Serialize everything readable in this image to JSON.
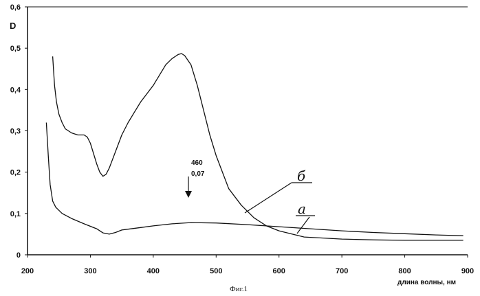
{
  "chart_data": {
    "type": "line",
    "ylabel": "D",
    "xlabel": "длина волны, нм",
    "xlim": [
      200,
      900
    ],
    "ylim": [
      0,
      0.6
    ],
    "x_ticks": [
      "200",
      "300",
      "400",
      "500",
      "600",
      "700",
      "800",
      "900"
    ],
    "y_ticks": [
      "0",
      "0,1",
      "0,2",
      "0,3",
      "0,4",
      "0,5",
      "0,6"
    ],
    "grid": false,
    "series": [
      {
        "name": "а",
        "x": [
          230,
          233,
          236,
          240,
          245,
          255,
          270,
          290,
          310,
          320,
          330,
          340,
          350,
          360,
          380,
          400,
          430,
          460,
          500,
          550,
          600,
          650,
          700,
          750,
          800,
          850,
          893
        ],
        "y": [
          0.32,
          0.24,
          0.17,
          0.13,
          0.115,
          0.1,
          0.088,
          0.075,
          0.063,
          0.053,
          0.05,
          0.054,
          0.06,
          0.062,
          0.066,
          0.07,
          0.075,
          0.078,
          0.077,
          0.073,
          0.068,
          0.063,
          0.058,
          0.054,
          0.051,
          0.048,
          0.046
        ]
      },
      {
        "name": "б",
        "x": [
          240,
          243,
          246,
          250,
          255,
          260,
          270,
          280,
          290,
          295,
          300,
          310,
          315,
          320,
          325,
          330,
          340,
          350,
          360,
          370,
          380,
          400,
          420,
          430,
          440,
          445,
          450,
          460,
          470,
          480,
          490,
          500,
          520,
          540,
          560,
          580,
          600,
          640,
          700,
          750,
          800,
          850,
          893
        ],
        "y": [
          0.48,
          0.41,
          0.37,
          0.34,
          0.32,
          0.305,
          0.295,
          0.29,
          0.29,
          0.285,
          0.27,
          0.22,
          0.2,
          0.19,
          0.195,
          0.21,
          0.25,
          0.29,
          0.32,
          0.345,
          0.37,
          0.41,
          0.46,
          0.475,
          0.485,
          0.487,
          0.482,
          0.46,
          0.41,
          0.35,
          0.29,
          0.24,
          0.16,
          0.12,
          0.09,
          0.07,
          0.058,
          0.043,
          0.038,
          0.036,
          0.035,
          0.035,
          0.035
        ]
      }
    ],
    "annotations": [
      {
        "text": "460",
        "x": 460
      },
      {
        "text": "0,07",
        "x": 460
      }
    ],
    "curve_labels": [
      "б",
      "а"
    ]
  },
  "caption": "Фиг.1"
}
